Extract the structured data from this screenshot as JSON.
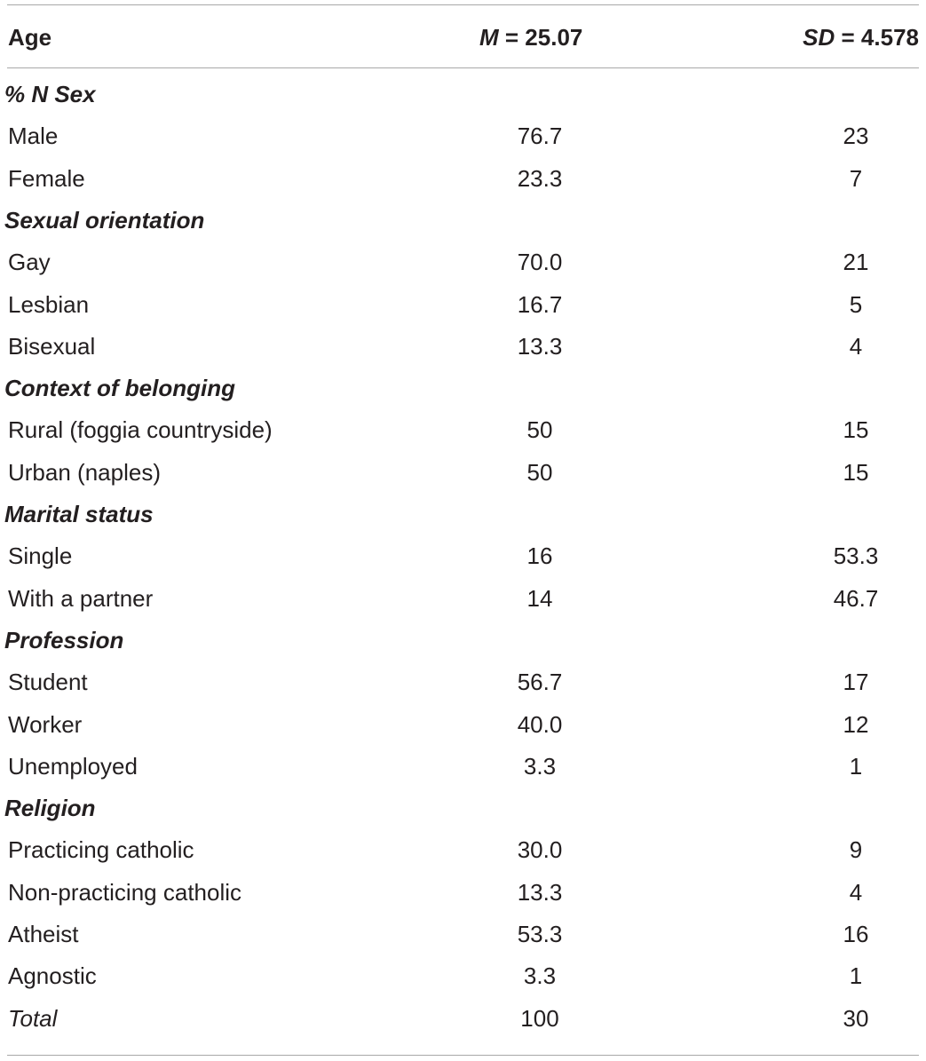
{
  "header": {
    "col1": "Age",
    "col2_prefix": "M",
    "col2_value": " = 25.07",
    "col3_prefix": "SD",
    "col3_value": " = 4.578"
  },
  "rows": [
    {
      "kind": "section",
      "label": "% N Sex",
      "v1": "",
      "v2": ""
    },
    {
      "kind": "item",
      "label": "Male",
      "v1": "76.7",
      "v2": "23"
    },
    {
      "kind": "item",
      "label": "Female",
      "v1": "23.3",
      "v2": "7"
    },
    {
      "kind": "section",
      "label": "Sexual orientation",
      "v1": "",
      "v2": ""
    },
    {
      "kind": "item",
      "label": "Gay",
      "v1": "70.0",
      "v2": "21"
    },
    {
      "kind": "item",
      "label": "Lesbian",
      "v1": "16.7",
      "v2": "5"
    },
    {
      "kind": "item",
      "label": "Bisexual",
      "v1": "13.3",
      "v2": "4"
    },
    {
      "kind": "section",
      "label": "Context of belonging",
      "v1": "",
      "v2": ""
    },
    {
      "kind": "item",
      "label": "Rural (foggia countryside)",
      "v1": "50",
      "v2": "15"
    },
    {
      "kind": "item",
      "label": "Urban (naples)",
      "v1": "50",
      "v2": "15"
    },
    {
      "kind": "section",
      "label": "Marital status",
      "v1": "",
      "v2": ""
    },
    {
      "kind": "item",
      "label": "Single",
      "v1": "16",
      "v2": "53.3"
    },
    {
      "kind": "item",
      "label": "With a partner",
      "v1": "14",
      "v2": "46.7"
    },
    {
      "kind": "section",
      "label": "Profession",
      "v1": "",
      "v2": ""
    },
    {
      "kind": "item",
      "label": "Student",
      "v1": "56.7",
      "v2": "17"
    },
    {
      "kind": "item",
      "label": "Worker",
      "v1": "40.0",
      "v2": "12"
    },
    {
      "kind": "item",
      "label": "Unemployed",
      "v1": "3.3",
      "v2": "1"
    },
    {
      "kind": "section",
      "label": "Religion",
      "v1": "",
      "v2": ""
    },
    {
      "kind": "item",
      "label": "Practicing catholic",
      "v1": "30.0",
      "v2": "9"
    },
    {
      "kind": "item",
      "label": "Non-practicing catholic",
      "v1": "13.3",
      "v2": "4"
    },
    {
      "kind": "item",
      "label": "Atheist",
      "v1": "53.3",
      "v2": "16"
    },
    {
      "kind": "item",
      "label": "Agnostic",
      "v1": "3.3",
      "v2": "1"
    },
    {
      "kind": "total",
      "label": "Total",
      "v1": "100",
      "v2": "30"
    }
  ]
}
